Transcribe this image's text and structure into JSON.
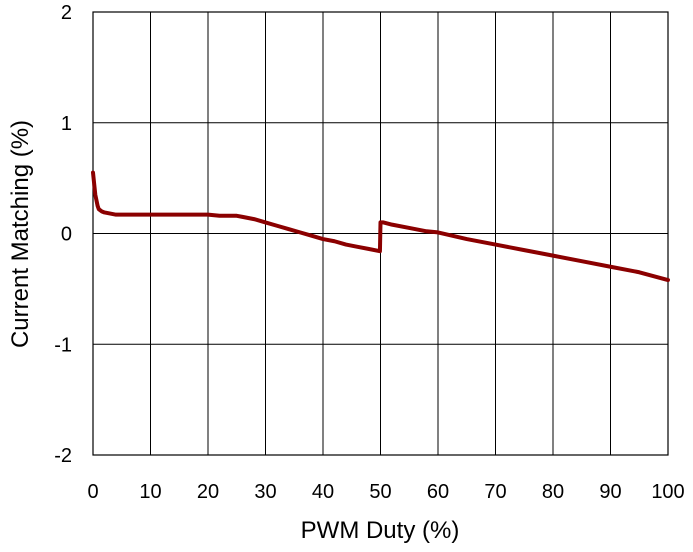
{
  "chart_data": {
    "type": "line",
    "title": "",
    "xlabel": "PWM Duty (%)",
    "ylabel": "Current Matching  (%)",
    "xlim": [
      0,
      100
    ],
    "ylim": [
      -2,
      2
    ],
    "x_ticks": [
      0,
      10,
      20,
      30,
      40,
      50,
      60,
      70,
      80,
      90,
      100
    ],
    "y_ticks": [
      -2,
      -1,
      0,
      1,
      2
    ],
    "grid": true,
    "legend": "none",
    "series": [
      {
        "color": "#8b0000",
        "x": [
          0,
          0.2,
          0.4,
          0.6,
          0.8,
          1,
          1.5,
          2,
          3,
          4,
          5,
          6,
          7,
          8,
          10,
          12,
          15,
          18,
          20,
          22,
          24,
          25,
          26,
          28,
          30,
          32,
          34,
          36,
          38,
          40,
          42,
          44,
          46,
          48,
          49.9,
          50,
          50.5,
          52,
          55,
          58,
          60,
          65,
          70,
          75,
          80,
          85,
          90,
          95,
          100
        ],
        "y": [
          0.55,
          0.45,
          0.35,
          0.3,
          0.25,
          0.22,
          0.2,
          0.19,
          0.18,
          0.17,
          0.17,
          0.17,
          0.17,
          0.17,
          0.17,
          0.17,
          0.17,
          0.17,
          0.17,
          0.16,
          0.16,
          0.16,
          0.15,
          0.13,
          0.1,
          0.07,
          0.04,
          0.01,
          -0.02,
          -0.05,
          -0.07,
          -0.1,
          -0.12,
          -0.14,
          -0.16,
          0.1,
          0.1,
          0.08,
          0.05,
          0.02,
          0.01,
          -0.05,
          -0.1,
          -0.15,
          -0.2,
          -0.25,
          -0.3,
          -0.35,
          -0.42
        ]
      }
    ]
  }
}
